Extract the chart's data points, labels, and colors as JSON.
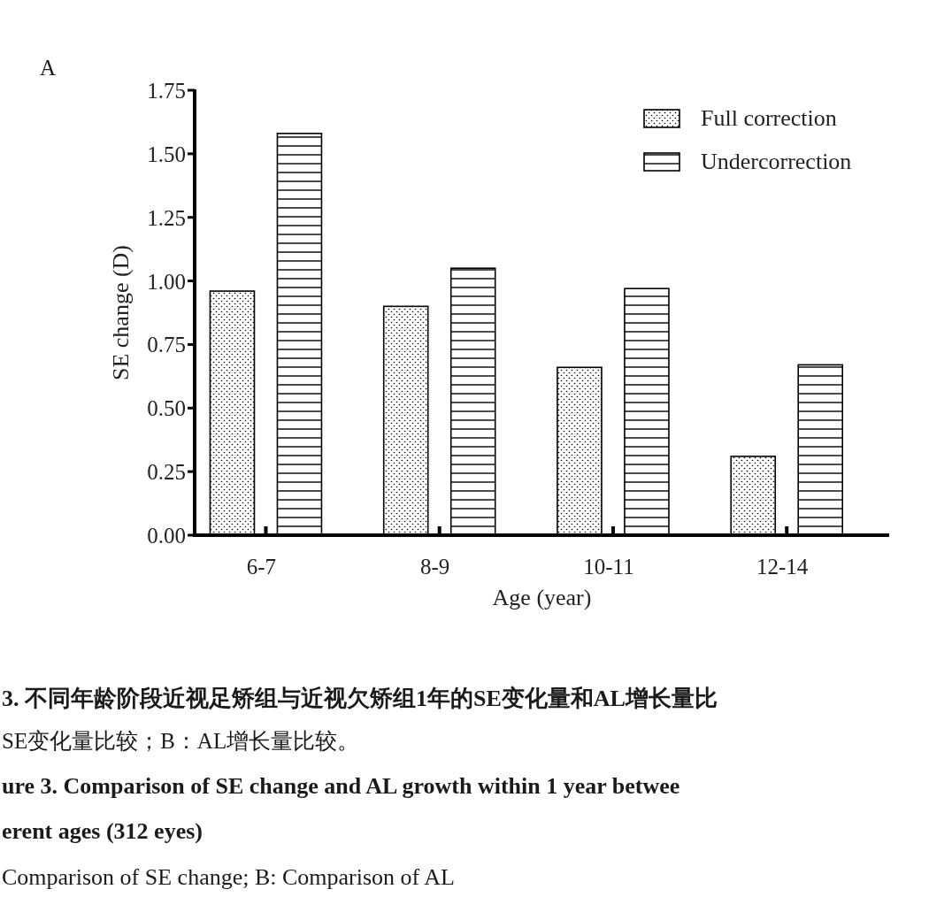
{
  "chart_data": {
    "type": "bar",
    "categories": [
      "6-7",
      "8-9",
      "10-11",
      "12-14"
    ],
    "series": [
      {
        "name": "Full correction",
        "color": "#000000",
        "values": [
          0.96,
          0.9,
          0.66,
          0.31
        ]
      },
      {
        "name": "Undercorrection",
        "color": "#000000",
        "values": [
          1.58,
          1.05,
          0.97,
          0.67
        ]
      }
    ],
    "xlabel": "Age (year)",
    "ylabel": "SE change (D)",
    "ylim": [
      0,
      1.75
    ],
    "yticks": [
      {
        "value": 0,
        "label": "0.00"
      },
      {
        "value": 0.25,
        "label": "0.25"
      },
      {
        "value": 0.5,
        "label": "0.50"
      },
      {
        "value": 0.75,
        "label": "0.75"
      },
      {
        "value": 1,
        "label": "1.00"
      },
      {
        "value": 1.25,
        "label": "1.25"
      },
      {
        "value": 1.5,
        "label": "1.50"
      },
      {
        "value": 1.75,
        "label": "1.75"
      }
    ],
    "legend": "top right",
    "grid": false,
    "annotations": [
      "A",
      "3.   不同年龄阶段近视足矫组与近视欠矫组1年的SE变化量和AL增长量比",
      "SE变化量比较；B：AL增长量比较。",
      "ure 3.   Comparison of SE change and AL growth within 1 year betwee",
      "erent ages (312 eyes)",
      "Comparison of SE change; B: Comparison of AL"
    ]
  }
}
